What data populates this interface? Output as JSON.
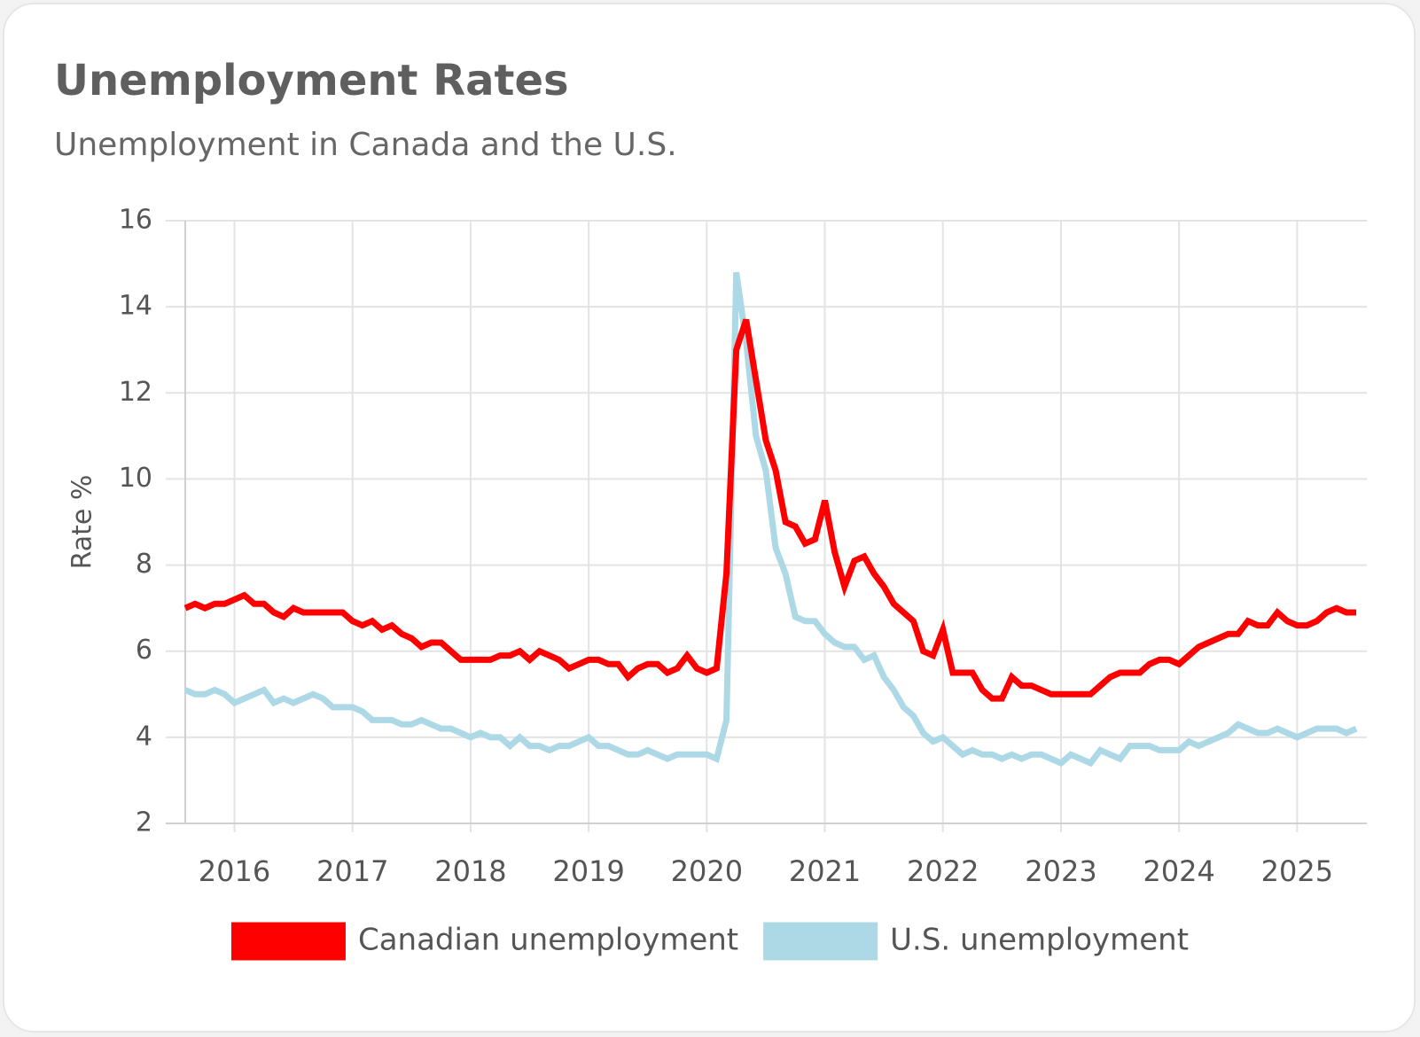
{
  "chart_data": {
    "type": "line",
    "title": "Unemployment Rates",
    "subtitle": "Unemployment in Canada and the U.S.",
    "y_label": "Rate %",
    "categories": [
      null,
      null,
      null,
      null,
      null,
      "2016",
      null,
      null,
      null,
      null,
      null,
      null,
      null,
      null,
      null,
      null,
      null,
      "2017",
      null,
      null,
      null,
      null,
      null,
      null,
      null,
      null,
      null,
      null,
      null,
      "2018",
      null,
      null,
      null,
      null,
      null,
      null,
      null,
      null,
      null,
      null,
      null,
      "2019",
      null,
      null,
      null,
      null,
      null,
      null,
      null,
      null,
      null,
      null,
      null,
      "2020",
      null,
      null,
      null,
      null,
      null,
      null,
      null,
      null,
      null,
      null,
      null,
      "2021",
      null,
      null,
      null,
      null,
      null,
      null,
      null,
      null,
      null,
      null,
      null,
      "2022",
      null,
      null,
      null,
      null,
      null,
      null,
      null,
      null,
      null,
      null,
      null,
      "2023",
      null,
      null,
      null,
      null,
      null,
      null,
      null,
      null,
      null,
      null,
      null,
      "2024",
      null,
      null,
      null,
      null,
      null,
      null,
      null,
      null,
      null,
      null,
      null,
      "2025",
      null,
      null,
      null,
      null,
      null,
      null
    ],
    "series": [
      {
        "name": "Canadian unemployment",
        "color": "#ff0000",
        "values": [
          7.0,
          7.1,
          7.0,
          7.1,
          7.1,
          7.2,
          7.3,
          7.1,
          7.1,
          6.9,
          6.8,
          7.0,
          6.9,
          6.9,
          6.9,
          6.9,
          6.9,
          6.7,
          6.6,
          6.7,
          6.5,
          6.6,
          6.4,
          6.3,
          6.1,
          6.2,
          6.2,
          6.0,
          5.8,
          5.8,
          5.8,
          5.8,
          5.9,
          5.9,
          6.0,
          5.8,
          6.0,
          5.9,
          5.8,
          5.6,
          5.7,
          5.8,
          5.8,
          5.7,
          5.7,
          5.4,
          5.6,
          5.7,
          5.7,
          5.5,
          5.6,
          5.9,
          5.6,
          5.5,
          5.6,
          7.8,
          13.0,
          13.7,
          12.3,
          10.9,
          10.2,
          9.0,
          8.9,
          8.5,
          8.6,
          9.5,
          8.3,
          7.5,
          8.1,
          8.2,
          7.8,
          7.5,
          7.1,
          6.9,
          6.7,
          6.0,
          5.9,
          6.5,
          5.5,
          5.5,
          5.5,
          5.1,
          4.9,
          4.9,
          5.4,
          5.2,
          5.2,
          5.1,
          5.0,
          5.0,
          5.0,
          5.0,
          5.0,
          5.2,
          5.4,
          5.5,
          5.5,
          5.5,
          5.7,
          5.8,
          5.8,
          5.7,
          5.9,
          6.1,
          6.2,
          6.3,
          6.4,
          6.4,
          6.7,
          6.6,
          6.6,
          6.9,
          6.7,
          6.6,
          6.6,
          6.7,
          6.9,
          7.0,
          6.9,
          6.9
        ]
      },
      {
        "name": "U.S. unemployment",
        "color": "#add8e6",
        "values": [
          5.1,
          5.0,
          5.0,
          5.1,
          5.0,
          4.8,
          4.9,
          5.0,
          5.1,
          4.8,
          4.9,
          4.8,
          4.9,
          5.0,
          4.9,
          4.7,
          4.7,
          4.7,
          4.6,
          4.4,
          4.4,
          4.4,
          4.3,
          4.3,
          4.4,
          4.3,
          4.2,
          4.2,
          4.1,
          4.0,
          4.1,
          4.0,
          4.0,
          3.8,
          4.0,
          3.8,
          3.8,
          3.7,
          3.8,
          3.8,
          3.9,
          4.0,
          3.8,
          3.8,
          3.7,
          3.6,
          3.6,
          3.7,
          3.6,
          3.5,
          3.6,
          3.6,
          3.6,
          3.6,
          3.5,
          4.4,
          14.8,
          13.2,
          11.0,
          10.2,
          8.4,
          7.8,
          6.8,
          6.7,
          6.7,
          6.4,
          6.2,
          6.1,
          6.1,
          5.8,
          5.9,
          5.4,
          5.1,
          4.7,
          4.5,
          4.1,
          3.9,
          4.0,
          3.8,
          3.6,
          3.7,
          3.6,
          3.6,
          3.5,
          3.6,
          3.5,
          3.6,
          3.6,
          3.5,
          3.4,
          3.6,
          3.5,
          3.4,
          3.7,
          3.6,
          3.5,
          3.8,
          3.8,
          3.8,
          3.7,
          3.7,
          3.7,
          3.9,
          3.8,
          3.9,
          4.0,
          4.1,
          4.3,
          4.2,
          4.1,
          4.1,
          4.2,
          4.1,
          4.0,
          4.1,
          4.2,
          4.2,
          4.2,
          4.1,
          4.2
        ]
      }
    ],
    "ylim": [
      2,
      16
    ],
    "yticks": [
      2,
      4,
      6,
      8,
      10,
      12,
      14,
      16
    ],
    "grid": true,
    "legend": "bottom"
  }
}
